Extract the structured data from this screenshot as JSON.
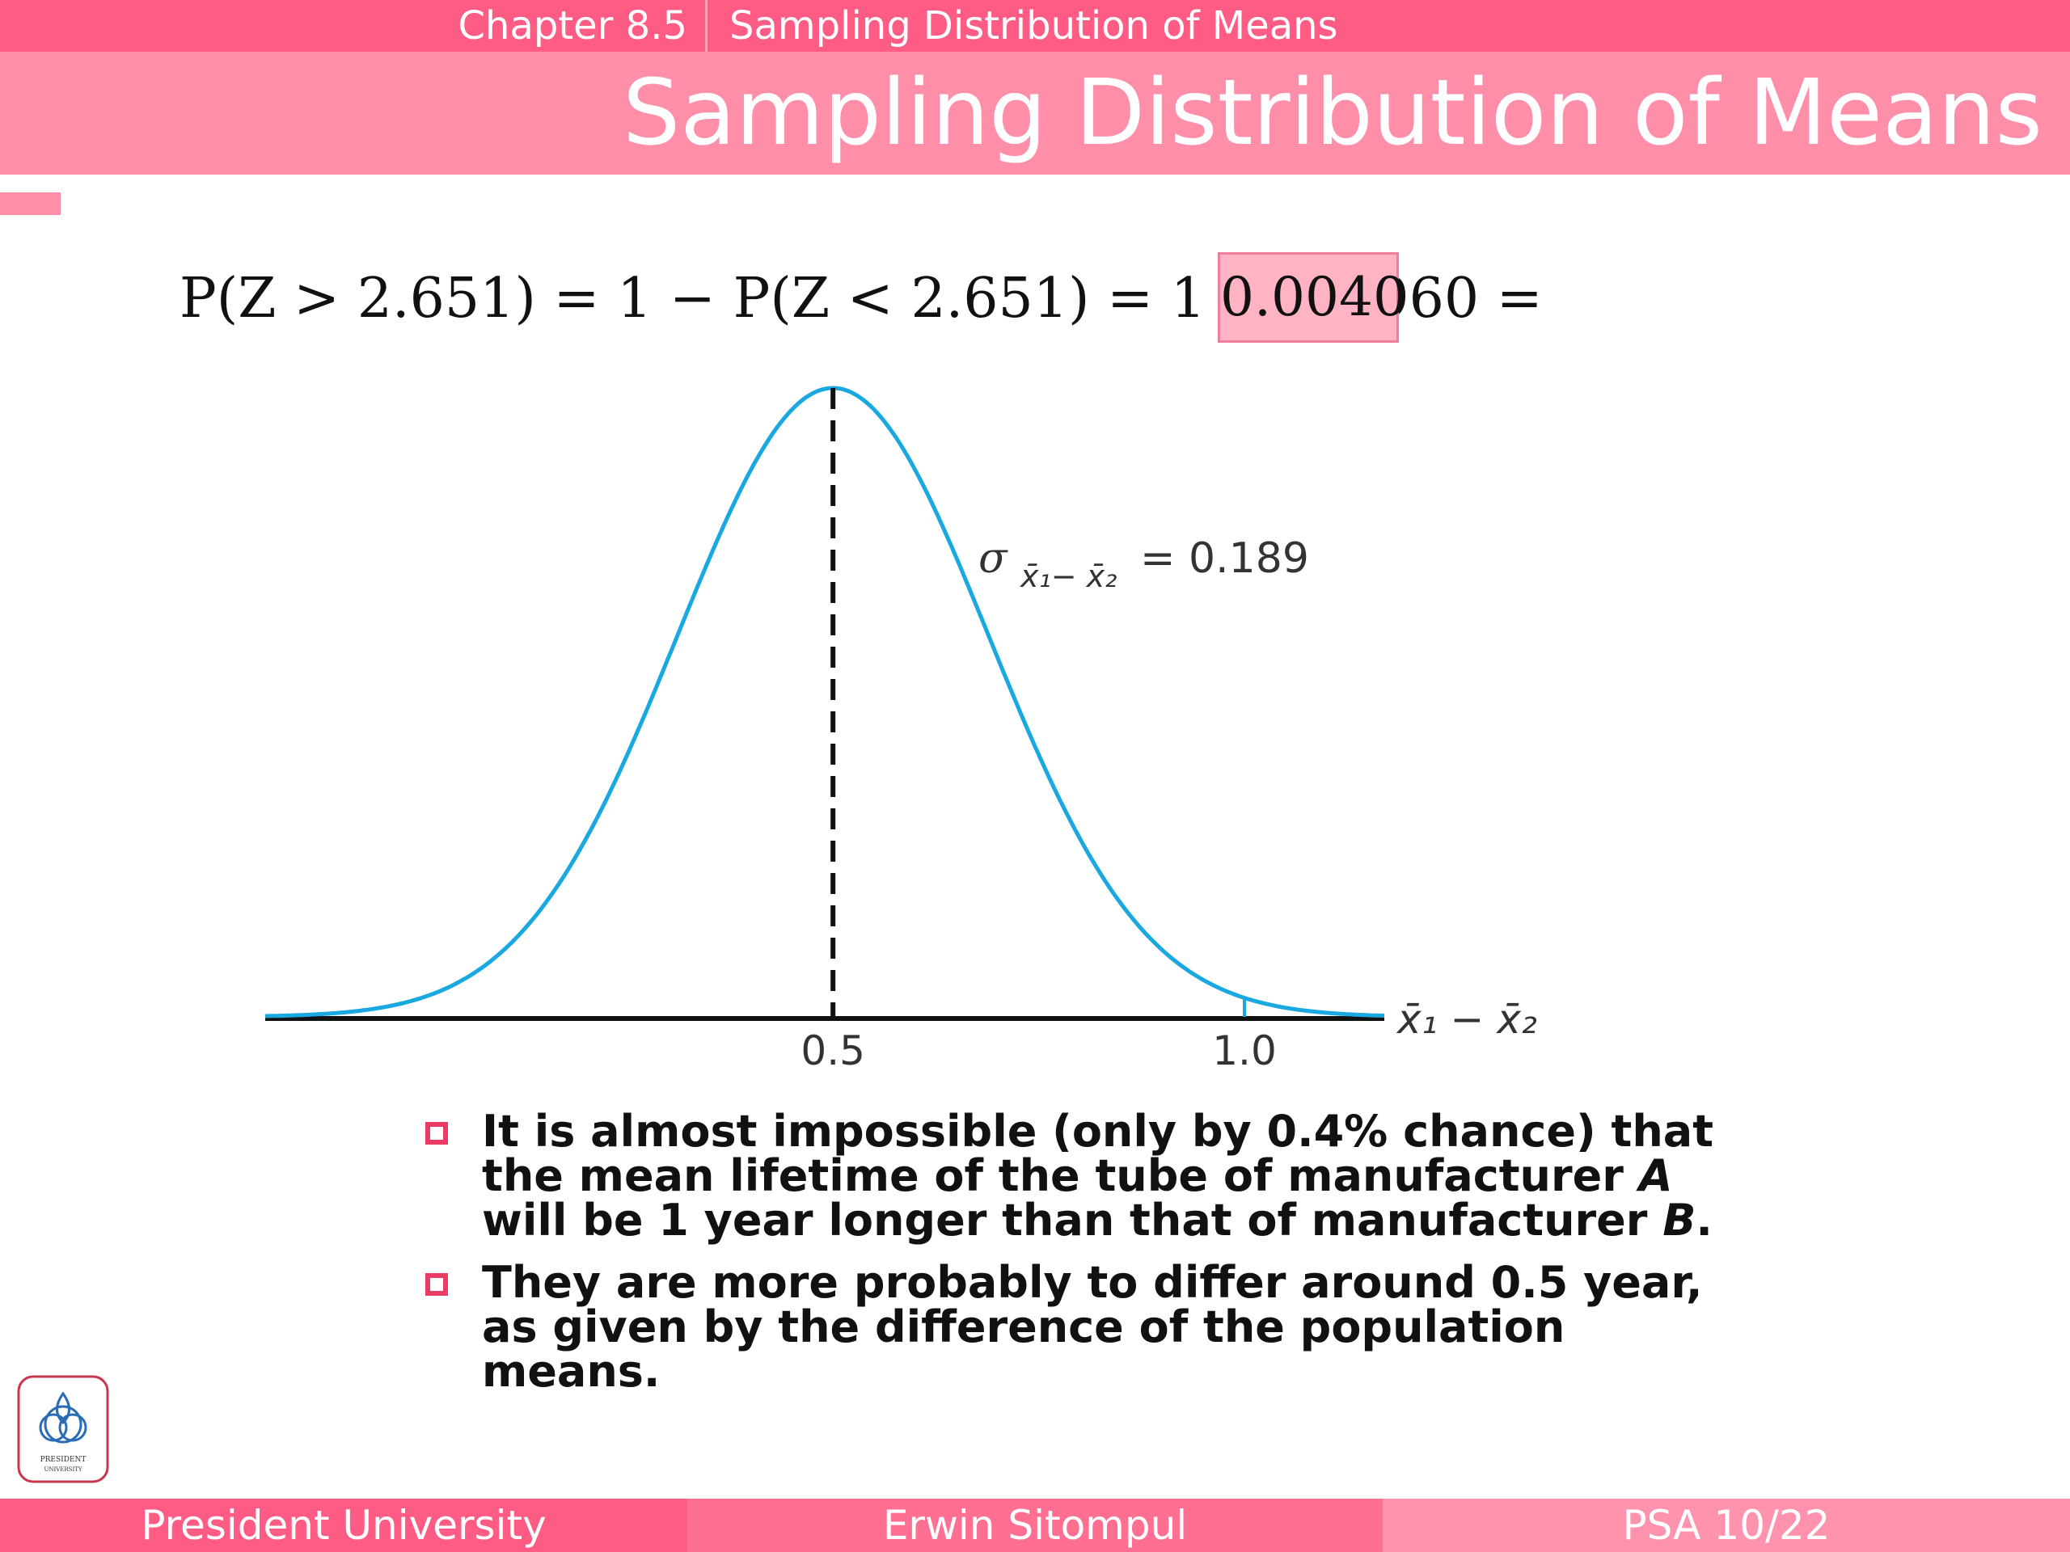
{
  "header": {
    "chapter": "Chapter 8.5",
    "section": "Sampling Distribution of Means",
    "title": "Sampling Distribution of Means"
  },
  "formula": {
    "lhs_text": "P(Z > 2.651) = 1 − P(Z < 2.651)  = 1 − 0.9960 =",
    "answer": "0.0040"
  },
  "chart_data": {
    "type": "line",
    "description_of_series": "normal density curve",
    "mean": 0.5,
    "sd": 0.189,
    "x_ticks": [
      0.5,
      1.0
    ],
    "tick_labels": [
      "0.5",
      "1.0"
    ],
    "sigma_label_symbol": "σ",
    "sigma_label_sub": "x̄₁− x̄₂",
    "sigma_label_value": "= 0.189",
    "axis_label_x": "x̄₁ − x̄₂",
    "xlim": [
      -0.19,
      1.17
    ],
    "mean_line": "dashed",
    "tail_marker_at": 1.0,
    "curve_color": "#1aa8e0"
  },
  "bullets": [
    {
      "pre": "It is almost impossible (only by 0.4% chance) that the mean lifetime of the tube of manufacturer ",
      "em1": "A",
      "mid": " will be 1 year longer than that of manufacturer ",
      "em2": "B",
      "post": "."
    },
    {
      "pre": "They are more probably to differ around 0.5 year, as given by the difference of the population means.",
      "em1": "",
      "mid": "",
      "em2": "",
      "post": ""
    }
  ],
  "logo": {
    "line1": "PRESIDENT",
    "line2": "UNIVERSITY"
  },
  "footer": {
    "left": "President University",
    "center": "Erwin Sitompul",
    "right": "PSA 10/22"
  },
  "colors": {
    "primary": "#ff5c85",
    "secondary": "#ff8fa9",
    "bullet": "#e93b63"
  }
}
